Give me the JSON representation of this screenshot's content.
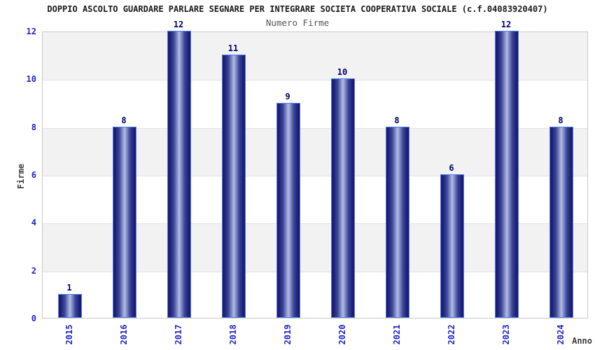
{
  "chart_data": {
    "type": "bar",
    "title": "DOPPIO ASCOLTO GUARDARE PARLARE SEGNARE PER INTEGRARE SOCIETA COOPERATIVA SOCIALE (c.f.04083920407)",
    "subtitle": "Numero Firme",
    "categories": [
      "2015",
      "2016",
      "2017",
      "2018",
      "2019",
      "2020",
      "2021",
      "2022",
      "2023",
      "2024"
    ],
    "values": [
      1,
      8,
      12,
      11,
      9,
      10,
      8,
      6,
      12,
      8
    ],
    "xlabel": "Anno",
    "ylabel": "Firme",
    "ylim": [
      0,
      12
    ],
    "yticks": [
      0,
      2,
      4,
      6,
      8,
      10,
      12
    ],
    "grid": "horizontal alternating bands every 2 units",
    "legend_position": "none",
    "colors": {
      "title": "#1a1a1a",
      "subtitle": "#555555",
      "tick_label": "#2323cc",
      "value_label": "#00006b",
      "axis_title": "#3d3d3d",
      "band": "#f2f2f2",
      "gridline": "#e3e3e3",
      "plot_border": "#c9c9c9",
      "bar_border": "#4f7fe8",
      "bar_edge_dark": "#1b1b72",
      "bar_mid": "#3a4699",
      "bar_center_light": "#b4bce4",
      "background": "#ffffff"
    }
  }
}
